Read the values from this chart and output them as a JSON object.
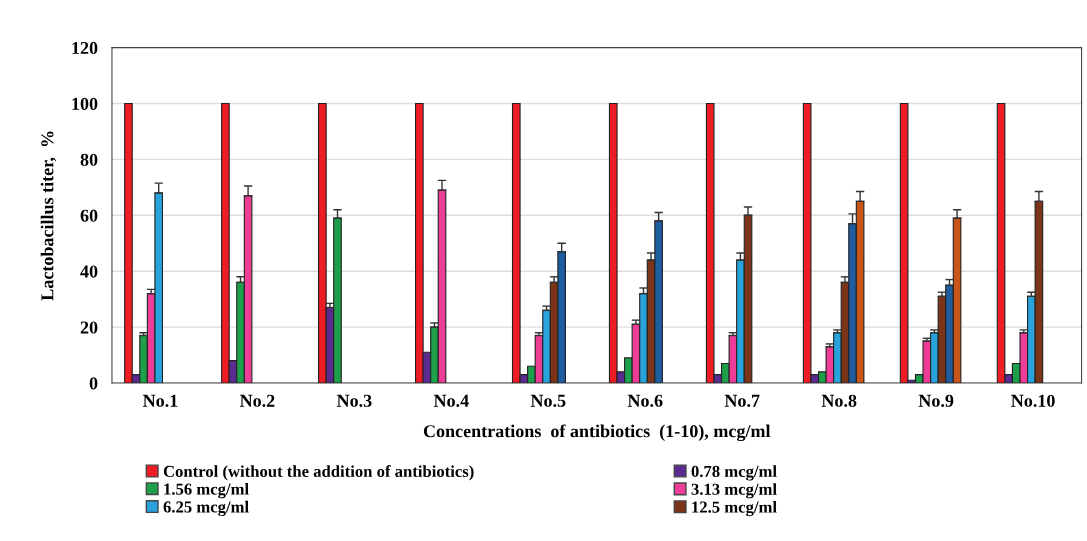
{
  "chart_data": {
    "type": "bar",
    "xlabel": "Concentrations  of antibiotics  (1-10), mcg/ml",
    "ylabel": "Lactobacillus titer,  %",
    "categories": [
      "No.1",
      "No.2",
      "No.3",
      "No.4",
      "No.5",
      "No.6",
      "No.7",
      "No.8",
      "No.9",
      "No.10"
    ],
    "series": [
      {
        "name": "Control (without the addition of antibiotics)",
        "color": "#ee1c25",
        "values": [
          100,
          100,
          100,
          100,
          100,
          100,
          100,
          100,
          100,
          100
        ]
      },
      {
        "name": "0.78 mcg/ml",
        "color": "#5b2c8f",
        "values": [
          3,
          8,
          27,
          11,
          3,
          4,
          3,
          3,
          1,
          3
        ],
        "errors": [
          null,
          null,
          1.5,
          null,
          null,
          null,
          null,
          null,
          null,
          null
        ]
      },
      {
        "name": "1.56 mcg/ml",
        "color": "#1ea04b",
        "values": [
          17,
          36,
          59,
          20,
          6,
          9,
          7,
          4,
          3,
          7
        ],
        "errors": [
          1,
          2,
          3,
          1.5,
          null,
          null,
          null,
          null,
          null,
          null
        ]
      },
      {
        "name": "3.13 mcg/ml",
        "color": "#ee3d96",
        "values": [
          32,
          67,
          null,
          69,
          17,
          21,
          17,
          13,
          15,
          18
        ],
        "errors": [
          1.5,
          3.5,
          null,
          3.5,
          1,
          1.5,
          1,
          1,
          1,
          1
        ]
      },
      {
        "name": "6.25 mcg/ml",
        "color": "#29a3dc",
        "values": [
          68,
          null,
          null,
          null,
          26,
          32,
          44,
          18,
          18,
          31
        ],
        "errors": [
          3.5,
          null,
          null,
          null,
          1.5,
          2,
          2.5,
          1,
          1,
          1.5
        ]
      },
      {
        "name": "12.5 mcg/ml",
        "color": "#7b3418",
        "values": [
          null,
          null,
          null,
          null,
          36,
          44,
          60,
          36,
          31,
          65
        ],
        "errors": [
          null,
          null,
          null,
          null,
          2,
          2.5,
          3,
          2,
          1.5,
          3.5
        ]
      },
      {
        "color": "#1f5d9f",
        "values": [
          null,
          null,
          null,
          null,
          47,
          58,
          null,
          57,
          35,
          null
        ],
        "errors": [
          null,
          null,
          null,
          null,
          3,
          3,
          null,
          3.5,
          2,
          null
        ]
      },
      {
        "color": "#c8561b",
        "values": [
          null,
          null,
          null,
          null,
          null,
          null,
          null,
          65,
          59,
          null
        ],
        "errors": [
          null,
          null,
          null,
          null,
          null,
          null,
          null,
          3.5,
          3,
          null
        ]
      }
    ],
    "ylim": [
      0,
      120
    ],
    "yticks": [
      0,
      20,
      40,
      60,
      80,
      100,
      120
    ],
    "grid": "y",
    "legend": "bottom"
  }
}
